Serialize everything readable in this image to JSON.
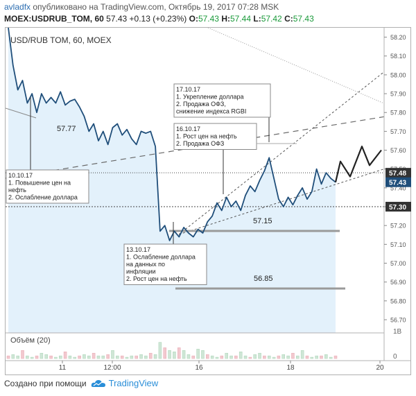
{
  "header": {
    "user": "avladfx",
    "published": "опубликовано на TradingView.com, Октябрь 19, 2017 07:28 MSK",
    "symbol": "MOEX:USDRUB_TOM, 60",
    "last": "57.43",
    "change": "+0.13 (+0.23%)",
    "o_label": "O:",
    "o": "57.43",
    "h_label": "H:",
    "h": "57.44",
    "l_label": "L:",
    "l": "57.42",
    "c_label": "C:",
    "c": "57.43"
  },
  "chart_title": "USD/RUB TOM, 60, MOEX",
  "volume_label": "Объём (20)",
  "volume_axis": [
    "1B",
    "0"
  ],
  "footer": {
    "created": "Создано при помощи",
    "brand": "TradingView"
  },
  "colors": {
    "price_line": "#1f4e7a",
    "area": "#d9ecf9",
    "forecast": "#222222",
    "support": "#9a9a9a"
  },
  "chart_data": {
    "type": "line",
    "symbol": "USD/RUB TOM",
    "ylim": [
      56.63,
      58.25
    ],
    "y_ticks": [
      58.2,
      58.1,
      58.0,
      57.9,
      57.8,
      57.7,
      57.6,
      57.5,
      57.4,
      57.3,
      57.2,
      57.1,
      57.0,
      56.9,
      56.8,
      56.7
    ],
    "x_ticks": [
      "11",
      "12:00",
      "16",
      "18",
      "20"
    ],
    "price_labels": [
      "57.48",
      "57.43",
      "57.30"
    ],
    "series": [
      {
        "values": [
          58.25,
          58.05,
          57.92,
          57.97,
          57.85,
          57.9,
          57.8,
          57.9,
          57.85,
          57.88,
          57.85,
          57.91,
          57.84,
          57.86,
          57.87,
          57.83,
          57.78,
          57.7,
          57.74,
          57.65,
          57.7,
          57.63,
          57.72,
          57.74,
          57.68,
          57.71,
          57.66,
          57.63,
          57.7,
          57.69,
          57.7,
          57.62,
          57.17,
          57.2,
          57.12,
          57.17,
          57.14,
          57.19,
          57.16,
          57.14,
          57.18,
          57.16,
          57.22,
          57.25,
          57.32,
          57.28,
          57.35,
          57.3,
          57.33,
          57.28,
          57.36,
          57.41,
          57.38,
          57.44,
          57.49,
          57.56,
          57.45,
          57.34,
          57.3,
          57.35,
          57.31,
          57.36,
          57.4,
          57.34,
          57.38,
          57.5,
          57.42,
          57.48,
          57.45,
          57.43
        ]
      },
      {
        "values": [
          57.43,
          57.54,
          57.46,
          57.62,
          57.52,
          57.6
        ]
      }
    ],
    "levels": [
      {
        "label": "57.77",
        "value": 57.77
      },
      {
        "label": "57.15",
        "value": 57.15
      },
      {
        "label": "56.85",
        "value": 56.85
      }
    ],
    "annotations": [
      {
        "title": "10.10.17",
        "lines": [
          "1. Повышение цен на",
          "нефть",
          "2. Ослабление доллара"
        ]
      },
      {
        "title": "13.10.17",
        "lines": [
          "1. Ослабление доллара",
          "на данных по",
          "инфляции",
          "2. Рост цен на нефть"
        ]
      },
      {
        "title": "16.10.17",
        "lines": [
          "1. Рост цен на нефть",
          "2. Продажа ОФЗ"
        ]
      },
      {
        "title": "17.10.17",
        "lines": [
          "1. Укрепление доллара",
          "2. Продажа ОФЗ,",
          "снижение индекса RGBI"
        ]
      }
    ],
    "volume": [
      0.1,
      0.15,
      0.1,
      0.3,
      0.1,
      0.05,
      0.1,
      0.2,
      0.15,
      0.1,
      0.05,
      0.1,
      0.25,
      0.1,
      0.05,
      0.1,
      0.15,
      0.1,
      0.2,
      0.1,
      0.1,
      0.15,
      0.3,
      0.1,
      0.1,
      0.05,
      0.1,
      0.1,
      0.15,
      0.1,
      0.2,
      0.15,
      0.6,
      0.4,
      0.3,
      0.25,
      0.4,
      0.3,
      0.15,
      0.1,
      0.35,
      0.3,
      0.15,
      0.1,
      0.05,
      0.1,
      0.2,
      0.1,
      0.1,
      0.25,
      0.1,
      0.05,
      0.15,
      0.2,
      0.1,
      0.1,
      0.05,
      0.1,
      0.15,
      0.1,
      0.2,
      0.1,
      0.3,
      0.1,
      0.05,
      0.1,
      0.1,
      0.15,
      0.05,
      0.1
    ]
  }
}
